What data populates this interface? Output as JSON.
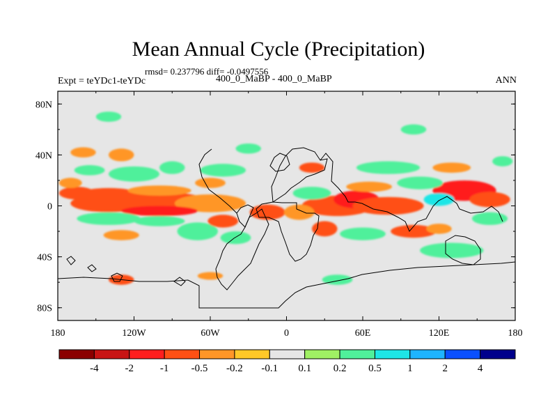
{
  "title": "Mean Annual Cycle (Precipitation)",
  "stats": "rmsd= 0.237796 diff= -0.0497556",
  "subtitle": "400_0_MaBP - 400_0_MaBP",
  "experiment": "Expt = teYDc1-teYDc",
  "season": "ANN",
  "map": {
    "lat_ticks": [
      {
        "value": 80,
        "label": "80N"
      },
      {
        "value": 40,
        "label": "40N"
      },
      {
        "value": 0,
        "label": "0"
      },
      {
        "value": -40,
        "label": "40S"
      },
      {
        "value": -80,
        "label": "80S"
      }
    ],
    "lon_ticks": [
      {
        "value": -180,
        "label": "180"
      },
      {
        "value": -120,
        "label": "120W"
      },
      {
        "value": -60,
        "label": "60W"
      },
      {
        "value": 0,
        "label": "0"
      },
      {
        "value": 60,
        "label": "60E"
      },
      {
        "value": 120,
        "label": "120E"
      },
      {
        "value": 180,
        "label": "180"
      }
    ],
    "background_color": "#e6e6e6"
  },
  "colorbar": {
    "colors": [
      "#8b0000",
      "#c81414",
      "#ff1e1e",
      "#ff5014",
      "#ff9628",
      "#ffc828",
      "#e6e6e6",
      "#a0f064",
      "#50f09b",
      "#1ee6e6",
      "#1eb4ff",
      "#0a50ff",
      "#00008c"
    ],
    "labels": [
      "-4",
      "-2",
      "-1",
      "-0.5",
      "-0.2",
      "-0.1",
      "0.1",
      "0.2",
      "0.5",
      "1",
      "2",
      "4"
    ]
  },
  "chart_data": {
    "type": "heatmap",
    "title": "Mean Annual Cycle (Precipitation)",
    "xlabel": "",
    "ylabel": "",
    "xlim": [
      -180,
      180
    ],
    "ylim": [
      -90,
      90
    ],
    "levels": [
      -4,
      -2,
      -1,
      -0.5,
      -0.2,
      -0.1,
      0.1,
      0.2,
      0.5,
      1,
      2,
      4
    ],
    "features": [
      {
        "lon": -140,
        "lat": 2,
        "w": 30,
        "h": 7,
        "level": -0.5
      },
      {
        "lon": -100,
        "lat": 3,
        "w": 38,
        "h": 8,
        "level": -0.5
      },
      {
        "lon": -60,
        "lat": 2,
        "w": 28,
        "h": 7,
        "level": -0.2
      },
      {
        "lon": -100,
        "lat": -4,
        "w": 30,
        "h": 4,
        "level": -1
      },
      {
        "lon": -140,
        "lat": 10,
        "w": 22,
        "h": 4,
        "level": -0.5
      },
      {
        "lon": -100,
        "lat": 12,
        "w": 25,
        "h": 4,
        "level": -0.2
      },
      {
        "lon": -165,
        "lat": 10,
        "w": 14,
        "h": 5,
        "level": -0.5
      },
      {
        "lon": -170,
        "lat": 18,
        "w": 9,
        "h": 4,
        "level": -0.2
      },
      {
        "lon": -120,
        "lat": 25,
        "w": 20,
        "h": 6,
        "level": 0.2
      },
      {
        "lon": -155,
        "lat": 28,
        "w": 12,
        "h": 4,
        "level": 0.2
      },
      {
        "lon": -90,
        "lat": 30,
        "w": 10,
        "h": 5,
        "level": 0.2
      },
      {
        "lon": -50,
        "lat": 28,
        "w": 18,
        "h": 5,
        "level": 0.2
      },
      {
        "lon": -60,
        "lat": 18,
        "w": 12,
        "h": 4,
        "level": -0.2
      },
      {
        "lon": -140,
        "lat": -10,
        "w": 25,
        "h": 5,
        "level": 0.2
      },
      {
        "lon": -100,
        "lat": -12,
        "w": 20,
        "h": 4,
        "level": 0.2
      },
      {
        "lon": -70,
        "lat": -20,
        "w": 16,
        "h": 7,
        "level": 0.2
      },
      {
        "lon": -40,
        "lat": -25,
        "w": 12,
        "h": 5,
        "level": 0.2
      },
      {
        "lon": -130,
        "lat": -23,
        "w": 14,
        "h": 4,
        "level": -0.2
      },
      {
        "lon": -50,
        "lat": -12,
        "w": 12,
        "h": 5,
        "level": -0.5
      },
      {
        "lon": -15,
        "lat": -5,
        "w": 14,
        "h": 6,
        "level": -0.5
      },
      {
        "lon": -130,
        "lat": 40,
        "w": 10,
        "h": 5,
        "level": -0.2
      },
      {
        "lon": -160,
        "lat": 42,
        "w": 10,
        "h": 4,
        "level": -0.2
      },
      {
        "lon": -30,
        "lat": 45,
        "w": 10,
        "h": 4,
        "level": 0.2
      },
      {
        "lon": -140,
        "lat": 70,
        "w": 10,
        "h": 4,
        "level": 0.2
      },
      {
        "lon": 40,
        "lat": 0,
        "w": 28,
        "h": 8,
        "level": -0.5
      },
      {
        "lon": 55,
        "lat": 5,
        "w": 18,
        "h": 7,
        "level": -1
      },
      {
        "lon": 80,
        "lat": 0,
        "w": 28,
        "h": 7,
        "level": -0.5
      },
      {
        "lon": 65,
        "lat": 15,
        "w": 18,
        "h": 4,
        "level": -0.2
      },
      {
        "lon": 20,
        "lat": 10,
        "w": 15,
        "h": 5,
        "level": 0.2
      },
      {
        "lon": 10,
        "lat": -5,
        "w": 12,
        "h": 6,
        "level": -0.2
      },
      {
        "lon": 30,
        "lat": -18,
        "w": 10,
        "h": 6,
        "level": -0.5
      },
      {
        "lon": 60,
        "lat": -22,
        "w": 18,
        "h": 5,
        "level": 0.2
      },
      {
        "lon": 100,
        "lat": -20,
        "w": 18,
        "h": 5,
        "level": -0.5
      },
      {
        "lon": 130,
        "lat": -35,
        "w": 25,
        "h": 6,
        "level": 0.2
      },
      {
        "lon": 140,
        "lat": 12,
        "w": 25,
        "h": 8,
        "level": -1
      },
      {
        "lon": 160,
        "lat": 5,
        "w": 16,
        "h": 6,
        "level": -0.5
      },
      {
        "lon": 105,
        "lat": 18,
        "w": 18,
        "h": 5,
        "level": 0.2
      },
      {
        "lon": 120,
        "lat": 5,
        "w": 12,
        "h": 5,
        "level": 0.5
      },
      {
        "lon": 160,
        "lat": -10,
        "w": 14,
        "h": 5,
        "level": 0.2
      },
      {
        "lon": 120,
        "lat": -18,
        "w": 10,
        "h": 4,
        "level": -0.2
      },
      {
        "lon": 80,
        "lat": 30,
        "w": 25,
        "h": 5,
        "level": 0.2
      },
      {
        "lon": 130,
        "lat": 30,
        "w": 15,
        "h": 4,
        "level": -0.2
      },
      {
        "lon": 20,
        "lat": 30,
        "w": 10,
        "h": 4,
        "level": -0.5
      },
      {
        "lon": 170,
        "lat": 35,
        "w": 8,
        "h": 4,
        "level": 0.2
      },
      {
        "lon": 100,
        "lat": 60,
        "w": 10,
        "h": 4,
        "level": 0.2
      },
      {
        "lon": -130,
        "lat": -58,
        "w": 10,
        "h": 4,
        "level": -0.5
      },
      {
        "lon": 40,
        "lat": -58,
        "w": 12,
        "h": 4,
        "level": 0.2
      },
      {
        "lon": -60,
        "lat": -55,
        "w": 10,
        "h": 3,
        "level": -0.2
      }
    ]
  }
}
